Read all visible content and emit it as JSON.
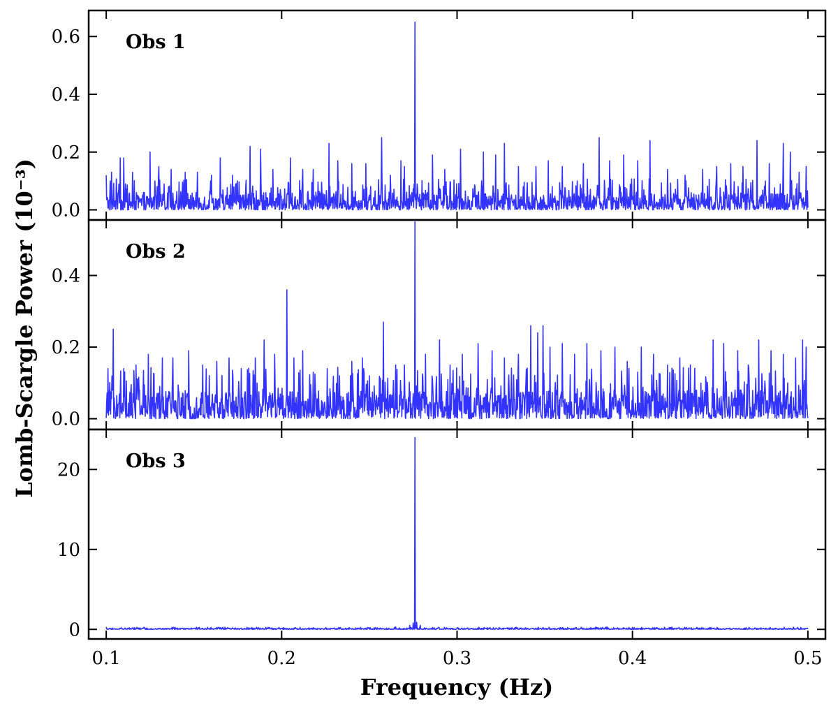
{
  "figure": {
    "xlabel": "Frequency (Hz)",
    "ylabel": "Lomb-Scargle Power (10⁻³)"
  },
  "chart_data": [
    {
      "type": "line",
      "panel": "Obs 1",
      "color": "#3333ff",
      "xlim": [
        0.09,
        0.51
      ],
      "ylim": [
        -0.035,
        0.69
      ],
      "xticks": [
        0.1,
        0.2,
        0.3,
        0.4,
        0.5
      ],
      "yticks": [
        0.0,
        0.2,
        0.4,
        0.6
      ],
      "yticklabels": [
        "0.0",
        "0.2",
        "0.4",
        "0.6"
      ],
      "noise_max": 0.06,
      "peaks": [
        [
          0.1,
          0.12
        ],
        [
          0.103,
          0.13
        ],
        [
          0.108,
          0.18
        ],
        [
          0.11,
          0.18
        ],
        [
          0.115,
          0.13
        ],
        [
          0.125,
          0.2
        ],
        [
          0.13,
          0.15
        ],
        [
          0.137,
          0.14
        ],
        [
          0.145,
          0.13
        ],
        [
          0.152,
          0.13
        ],
        [
          0.16,
          0.12
        ],
        [
          0.165,
          0.18
        ],
        [
          0.172,
          0.12
        ],
        [
          0.182,
          0.22
        ],
        [
          0.188,
          0.21
        ],
        [
          0.195,
          0.14
        ],
        [
          0.205,
          0.18
        ],
        [
          0.212,
          0.14
        ],
        [
          0.218,
          0.14
        ],
        [
          0.227,
          0.23
        ],
        [
          0.232,
          0.17
        ],
        [
          0.24,
          0.16
        ],
        [
          0.248,
          0.16
        ],
        [
          0.257,
          0.25
        ],
        [
          0.262,
          0.12
        ],
        [
          0.268,
          0.17
        ],
        [
          0.27,
          0.15
        ],
        [
          0.276,
          0.65
        ],
        [
          0.286,
          0.19
        ],
        [
          0.293,
          0.14
        ],
        [
          0.302,
          0.21
        ],
        [
          0.315,
          0.2
        ],
        [
          0.322,
          0.19
        ],
        [
          0.327,
          0.23
        ],
        [
          0.335,
          0.15
        ],
        [
          0.345,
          0.15
        ],
        [
          0.352,
          0.17
        ],
        [
          0.36,
          0.15
        ],
        [
          0.372,
          0.16
        ],
        [
          0.381,
          0.25
        ],
        [
          0.387,
          0.17
        ],
        [
          0.395,
          0.19
        ],
        [
          0.403,
          0.17
        ],
        [
          0.41,
          0.24
        ],
        [
          0.42,
          0.14
        ],
        [
          0.43,
          0.12
        ],
        [
          0.44,
          0.14
        ],
        [
          0.448,
          0.15
        ],
        [
          0.456,
          0.16
        ],
        [
          0.463,
          0.15
        ],
        [
          0.471,
          0.24
        ],
        [
          0.478,
          0.16
        ],
        [
          0.486,
          0.23
        ],
        [
          0.49,
          0.2
        ],
        [
          0.495,
          0.13
        ],
        [
          0.499,
          0.15
        ]
      ]
    },
    {
      "type": "line",
      "panel": "Obs 2",
      "color": "#3333ff",
      "xlim": [
        0.09,
        0.51
      ],
      "ylim": [
        -0.03,
        0.555
      ],
      "xticks": [
        0.1,
        0.2,
        0.3,
        0.4,
        0.5
      ],
      "yticks": [
        0.0,
        0.2,
        0.4
      ],
      "yticklabels": [
        "0.0",
        "0.2",
        "0.4"
      ],
      "noise_max": 0.08,
      "peaks": [
        [
          0.101,
          0.14
        ],
        [
          0.104,
          0.25
        ],
        [
          0.11,
          0.14
        ],
        [
          0.117,
          0.15
        ],
        [
          0.124,
          0.18
        ],
        [
          0.132,
          0.17
        ],
        [
          0.138,
          0.17
        ],
        [
          0.147,
          0.19
        ],
        [
          0.155,
          0.15
        ],
        [
          0.163,
          0.16
        ],
        [
          0.17,
          0.17
        ],
        [
          0.177,
          0.14
        ],
        [
          0.185,
          0.17
        ],
        [
          0.19,
          0.22
        ],
        [
          0.196,
          0.18
        ],
        [
          0.203,
          0.36
        ],
        [
          0.207,
          0.17
        ],
        [
          0.212,
          0.19
        ],
        [
          0.218,
          0.13
        ],
        [
          0.226,
          0.14
        ],
        [
          0.233,
          0.12
        ],
        [
          0.24,
          0.16
        ],
        [
          0.246,
          0.17
        ],
        [
          0.25,
          0.12
        ],
        [
          0.258,
          0.27
        ],
        [
          0.265,
          0.15
        ],
        [
          0.27,
          0.15
        ],
        [
          0.276,
          0.55
        ],
        [
          0.282,
          0.18
        ],
        [
          0.29,
          0.22
        ],
        [
          0.296,
          0.15
        ],
        [
          0.303,
          0.18
        ],
        [
          0.312,
          0.21
        ],
        [
          0.32,
          0.19
        ],
        [
          0.327,
          0.17
        ],
        [
          0.335,
          0.18
        ],
        [
          0.342,
          0.26
        ],
        [
          0.346,
          0.24
        ],
        [
          0.349,
          0.26
        ],
        [
          0.353,
          0.2
        ],
        [
          0.36,
          0.21
        ],
        [
          0.367,
          0.18
        ],
        [
          0.374,
          0.21
        ],
        [
          0.382,
          0.19
        ],
        [
          0.39,
          0.2
        ],
        [
          0.397,
          0.16
        ],
        [
          0.405,
          0.2
        ],
        [
          0.412,
          0.18
        ],
        [
          0.42,
          0.15
        ],
        [
          0.427,
          0.17
        ],
        [
          0.433,
          0.15
        ],
        [
          0.446,
          0.22
        ],
        [
          0.452,
          0.21
        ],
        [
          0.46,
          0.19
        ],
        [
          0.466,
          0.15
        ],
        [
          0.472,
          0.22
        ],
        [
          0.479,
          0.19
        ],
        [
          0.486,
          0.18
        ],
        [
          0.493,
          0.17
        ],
        [
          0.497,
          0.22
        ],
        [
          0.499,
          0.2
        ]
      ]
    },
    {
      "type": "line",
      "panel": "Obs 3",
      "color": "#3333ff",
      "xlim": [
        0.09,
        0.51
      ],
      "ylim": [
        -1.2,
        25.0
      ],
      "xticks": [
        0.1,
        0.2,
        0.3,
        0.4,
        0.5
      ],
      "xticklabels": [
        "0.1",
        "0.2",
        "0.3",
        "0.4",
        "0.5"
      ],
      "yticks": [
        0,
        10,
        20
      ],
      "yticklabels": [
        "0",
        "10",
        "20"
      ],
      "noise_max": 0.15,
      "peaks": [
        [
          0.1,
          0.3
        ],
        [
          0.265,
          0.3
        ],
        [
          0.273,
          0.5
        ],
        [
          0.275,
          0.8
        ],
        [
          0.276,
          24.0
        ],
        [
          0.277,
          0.9
        ],
        [
          0.279,
          0.5
        ],
        [
          0.4,
          0.25
        ]
      ]
    }
  ]
}
